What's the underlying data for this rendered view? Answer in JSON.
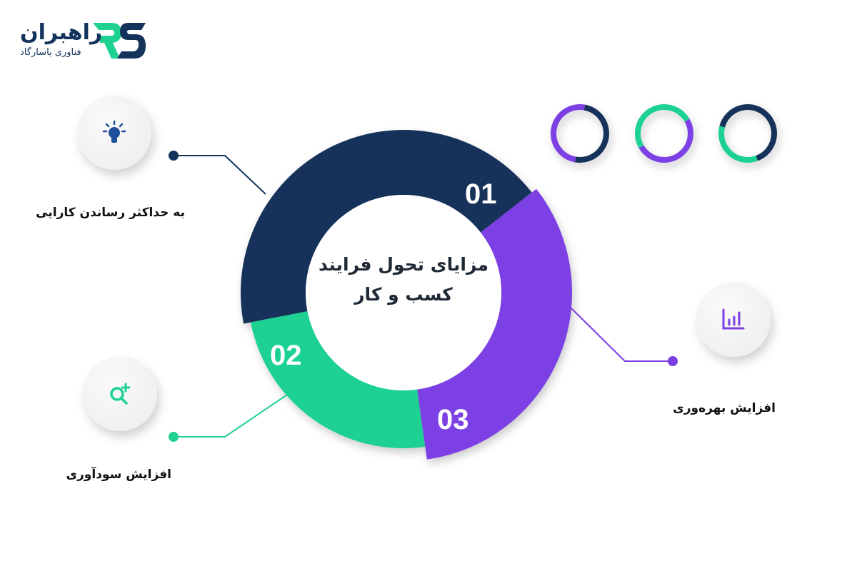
{
  "logo": {
    "name": "راهبران",
    "subtitle": "فناوری یاسارگاد",
    "mark": "RS"
  },
  "center_title": "مزایای تحول فرایند کسب و کار",
  "colors": {
    "navy": "#13335a",
    "purple": "#7b3fe4",
    "green": "#1fd191"
  },
  "segments": [
    {
      "number": "01",
      "label": "به حداکثر رساندن کارایی",
      "icon": "lightbulb-icon",
      "color": "#13335a"
    },
    {
      "number": "02",
      "label": "افزایش سودآوری",
      "icon": "search-plus-icon",
      "color": "#1fd191"
    },
    {
      "number": "03",
      "label": "افزایش بهره‌وری",
      "icon": "bar-chart-icon",
      "color": "#7b3fe4"
    }
  ]
}
